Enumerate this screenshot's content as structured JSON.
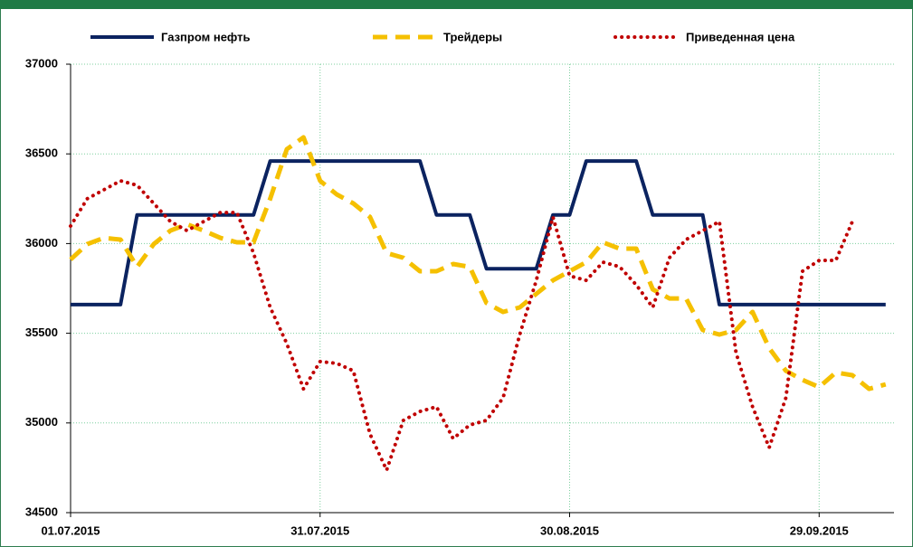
{
  "chart_data": {
    "type": "line",
    "x": [
      "2015-07-01",
      "2015-07-03",
      "2015-07-05",
      "2015-07-07",
      "2015-07-09",
      "2015-07-11",
      "2015-07-13",
      "2015-07-15",
      "2015-07-17",
      "2015-07-19",
      "2015-07-21",
      "2015-07-23",
      "2015-07-25",
      "2015-07-27",
      "2015-07-29",
      "2015-07-31",
      "2015-08-02",
      "2015-08-04",
      "2015-08-06",
      "2015-08-08",
      "2015-08-10",
      "2015-08-12",
      "2015-08-14",
      "2015-08-16",
      "2015-08-18",
      "2015-08-20",
      "2015-08-22",
      "2015-08-24",
      "2015-08-26",
      "2015-08-28",
      "2015-08-30",
      "2015-09-01",
      "2015-09-03",
      "2015-09-05",
      "2015-09-07",
      "2015-09-09",
      "2015-09-11",
      "2015-09-13",
      "2015-09-15",
      "2015-09-17",
      "2015-09-19",
      "2015-09-21",
      "2015-09-23",
      "2015-09-25",
      "2015-09-27",
      "2015-09-29",
      "2015-10-01",
      "2015-10-03",
      "2015-10-05",
      "2015-10-07"
    ],
    "series": [
      {
        "name": "Газпром нефть",
        "color": "#0b2360",
        "style": "solid",
        "values": [
          35660,
          35660,
          35660,
          35660,
          36160,
          36160,
          36160,
          36160,
          36160,
          36160,
          36160,
          36160,
          36460,
          36460,
          36460,
          36460,
          36460,
          36460,
          36460,
          36460,
          36460,
          36460,
          36160,
          36160,
          36160,
          35860,
          35860,
          35860,
          35860,
          36160,
          36160,
          36460,
          36460,
          36460,
          36460,
          36160,
          36160,
          36160,
          36160,
          35660,
          35660,
          35660,
          35660,
          35660,
          35660,
          35660,
          35660,
          35660,
          35660,
          35660
        ]
      },
      {
        "name": "Трейдеры",
        "color": "#f5c000",
        "style": "dashed",
        "values": [
          35911,
          35997,
          36032,
          36022,
          35870,
          35997,
          36072,
          36108,
          36072,
          36032,
          36007,
          36007,
          36250,
          36526,
          36592,
          36350,
          36274,
          36224,
          36148,
          35947,
          35921,
          35846,
          35846,
          35886,
          35870,
          35669,
          35619,
          35644,
          35720,
          35795,
          35846,
          35896,
          36007,
          35972,
          35972,
          35745,
          35694,
          35694,
          35518,
          35493,
          35518,
          35619,
          35417,
          35291,
          35240,
          35200,
          35281,
          35266,
          35190,
          35215
        ]
      },
      {
        "name": "Приведенная цена",
        "color": "#c00000",
        "style": "dotted",
        "values": [
          36098,
          36250,
          36300,
          36350,
          36325,
          36224,
          36123,
          36072,
          36123,
          36173,
          36173,
          35947,
          35644,
          35442,
          35190,
          35342,
          35332,
          35291,
          34938,
          34737,
          35014,
          35064,
          35090,
          34913,
          34989,
          35014,
          35140,
          35493,
          35795,
          36148,
          35820,
          35795,
          35896,
          35871,
          35770,
          35644,
          35921,
          36022,
          36072,
          36123,
          35392,
          35090,
          34863,
          35140,
          35846,
          35906,
          35906,
          36123,
          null,
          null
        ]
      }
    ],
    "xlim": [
      "2015-07-01",
      "2015-10-08"
    ],
    "xticks": [
      {
        "value": "2015-07-01",
        "label": "01.07.2015"
      },
      {
        "value": "2015-07-31",
        "label": "31.07.2015"
      },
      {
        "value": "2015-08-30",
        "label": "30.08.2015"
      },
      {
        "value": "2015-09-29",
        "label": "29.09.2015"
      }
    ],
    "ylim": [
      34500,
      37000
    ],
    "yticks": [
      34500,
      35000,
      35500,
      36000,
      36500,
      37000
    ],
    "grid": true,
    "legend": "top"
  }
}
